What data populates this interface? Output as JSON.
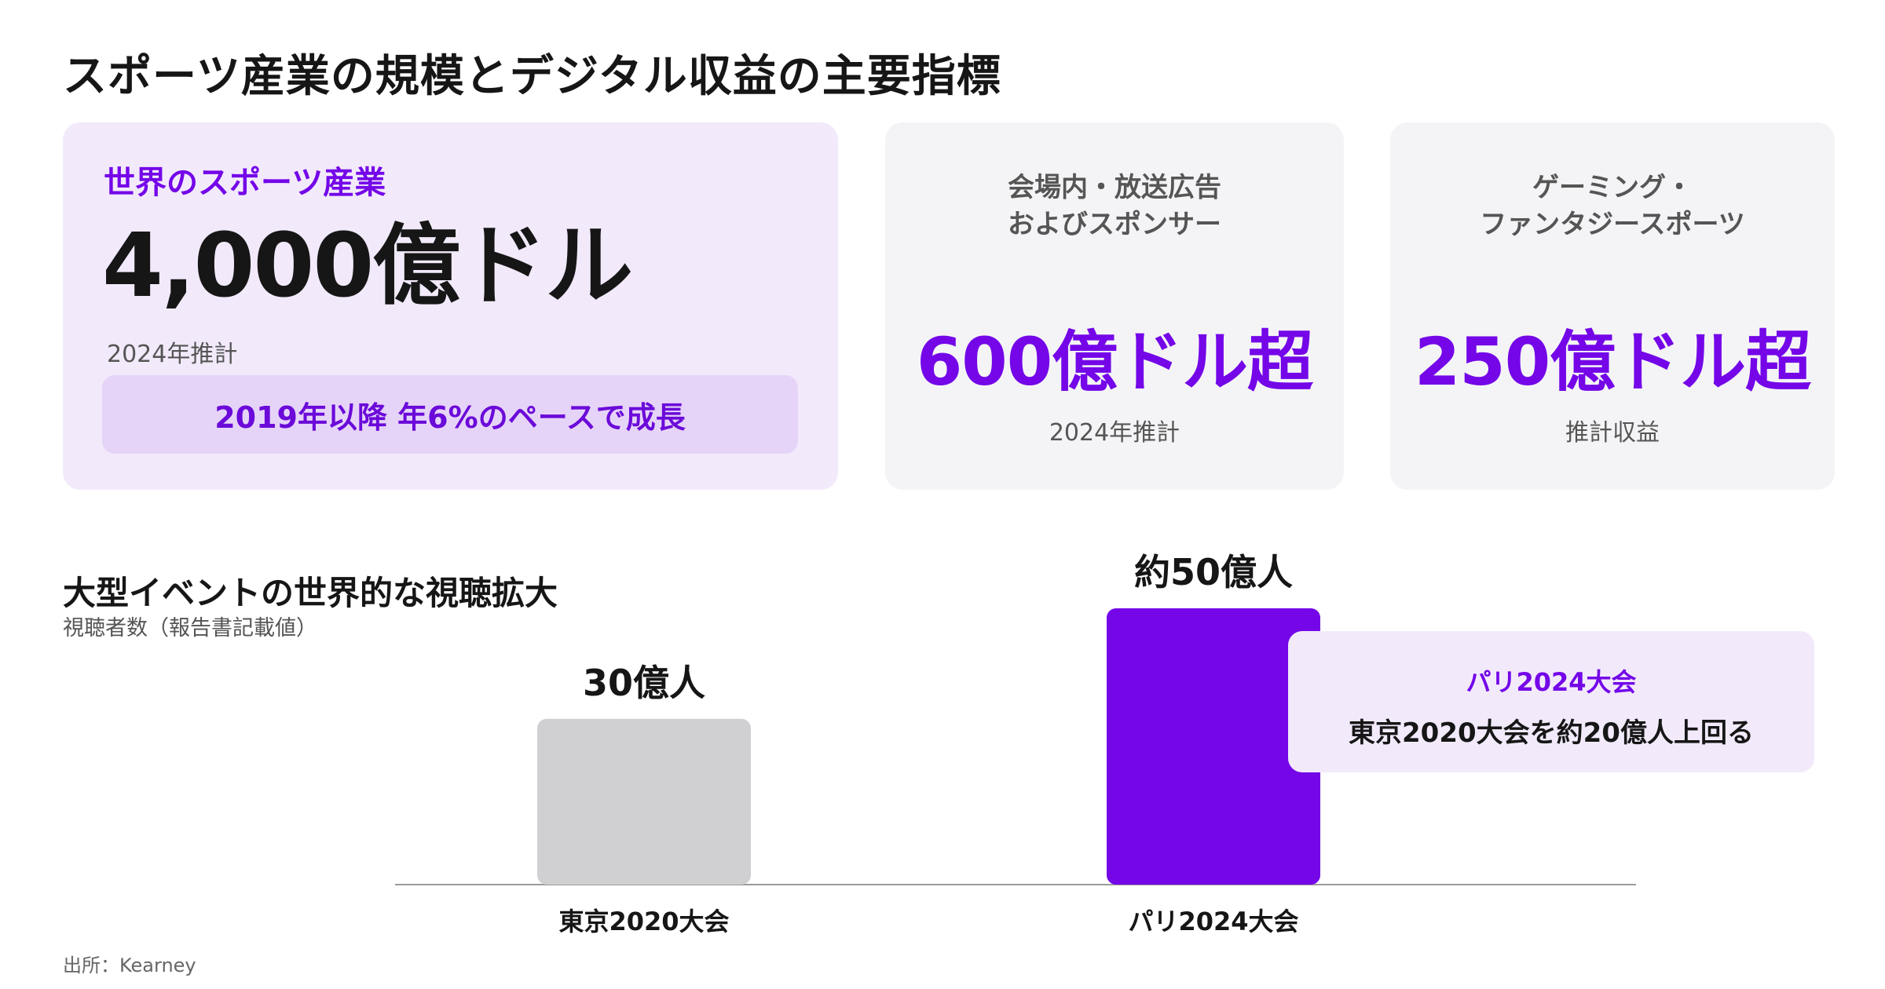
{
  "title": "スポーツ産業の規模とデジタル収益の主要指標",
  "kpi_main": {
    "label": "世界のスポーツ産業",
    "value": "4,000億ドル",
    "note": "2024年推計",
    "highlight": "2019年以降 年6%のペースで成長"
  },
  "kpi_venue": {
    "label_lines": [
      "会場内・放送広告",
      "およびスポンサー"
    ],
    "value": "600億ドル超",
    "note": "2024年推計"
  },
  "kpi_gaming": {
    "label_lines": [
      "ゲーミング・",
      "ファンタジースポーツ"
    ],
    "value": "250億ドル超",
    "note": "推計収益"
  },
  "section": {
    "title": "大型イベントの世界的な視聴拡大",
    "subtitle": "視聴者数（報告書記載値）"
  },
  "chart_data": {
    "type": "bar",
    "title": "大型イベントの世界的な視聴拡大",
    "subtitle": "視聴者数（報告書記載値）",
    "categories": [
      "東京2020大会",
      "パリ2024大会"
    ],
    "values": [
      30,
      50
    ],
    "unit": "億人",
    "data_labels": [
      "30億人",
      "約50億人"
    ],
    "ylim": [
      0,
      50
    ],
    "grid": false,
    "legend": "none",
    "colors": [
      "#d0d0d3",
      "#7406e8"
    ]
  },
  "callout": {
    "title": "パリ2024大会",
    "text": "東京2020大会を約20億人上回る"
  },
  "source": "出所：Kearney",
  "colors": {
    "accent": "#7406e8",
    "accent_light": "#f2eafb",
    "neutral_card": "#f4f4f6",
    "baseline": "#9a9a9a"
  }
}
